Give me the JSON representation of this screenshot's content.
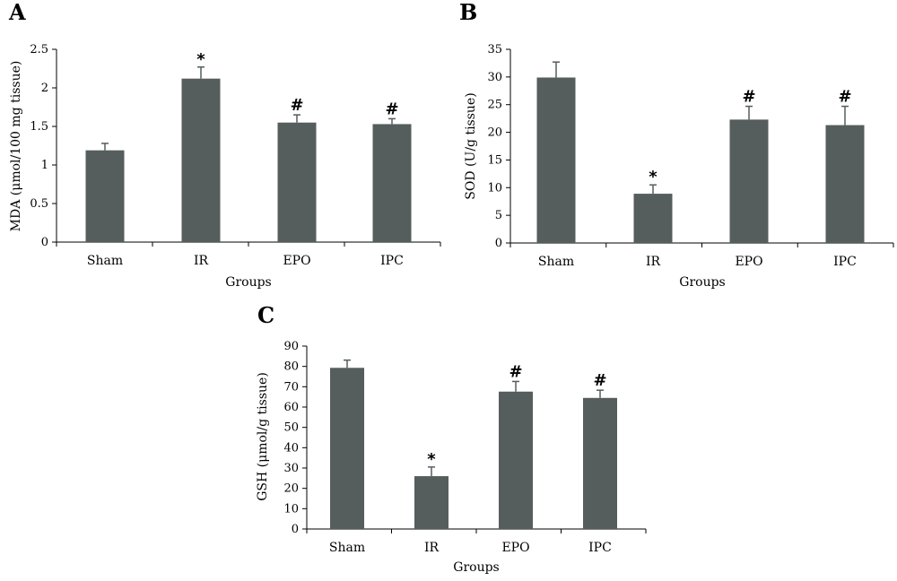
{
  "chart_data": [
    {
      "type": "bar",
      "panel": "A",
      "categories": [
        "Sham",
        "IR",
        "EPO",
        "IPC"
      ],
      "values": [
        1.19,
        2.12,
        1.55,
        1.53
      ],
      "errors": [
        0.09,
        0.15,
        0.1,
        0.07
      ],
      "annotations": [
        "",
        "*",
        "#",
        "#"
      ],
      "xlabel": "Groups",
      "ylabel": "MDA (μmol/100 mg tissue)",
      "ylim": [
        0,
        2.5
      ],
      "yticks": [
        "0",
        "0.5",
        "1",
        "1.5",
        "2",
        "2.5"
      ],
      "grid": false,
      "bar_color": "#555d5d"
    },
    {
      "type": "bar",
      "panel": "B",
      "categories": [
        "Sham",
        "IR",
        "EPO",
        "IPC"
      ],
      "values": [
        29.9,
        8.9,
        22.3,
        21.3
      ],
      "errors": [
        2.8,
        1.6,
        2.4,
        3.4
      ],
      "annotations": [
        "",
        "*",
        "#",
        "#"
      ],
      "xlabel": "Groups",
      "ylabel": "SOD (U/g tissue)",
      "ylim": [
        0,
        35
      ],
      "yticks": [
        "0",
        "5",
        "10",
        "15",
        "20",
        "25",
        "30",
        "35"
      ],
      "grid": false,
      "bar_color": "#555d5d"
    },
    {
      "type": "bar",
      "panel": "C",
      "categories": [
        "Sham",
        "IR",
        "EPO",
        "IPC"
      ],
      "values": [
        79.3,
        26.0,
        67.6,
        64.5
      ],
      "errors": [
        3.8,
        4.5,
        5.0,
        3.8
      ],
      "annotations": [
        "",
        "*",
        "#",
        "#"
      ],
      "xlabel": "Groups",
      "ylabel": "GSH (μmol/g tissue)",
      "ylim": [
        0,
        90
      ],
      "yticks": [
        "0",
        "10",
        "20",
        "30",
        "40",
        "50",
        "60",
        "70",
        "80",
        "90"
      ],
      "grid": false,
      "bar_color": "#555d5d"
    }
  ]
}
